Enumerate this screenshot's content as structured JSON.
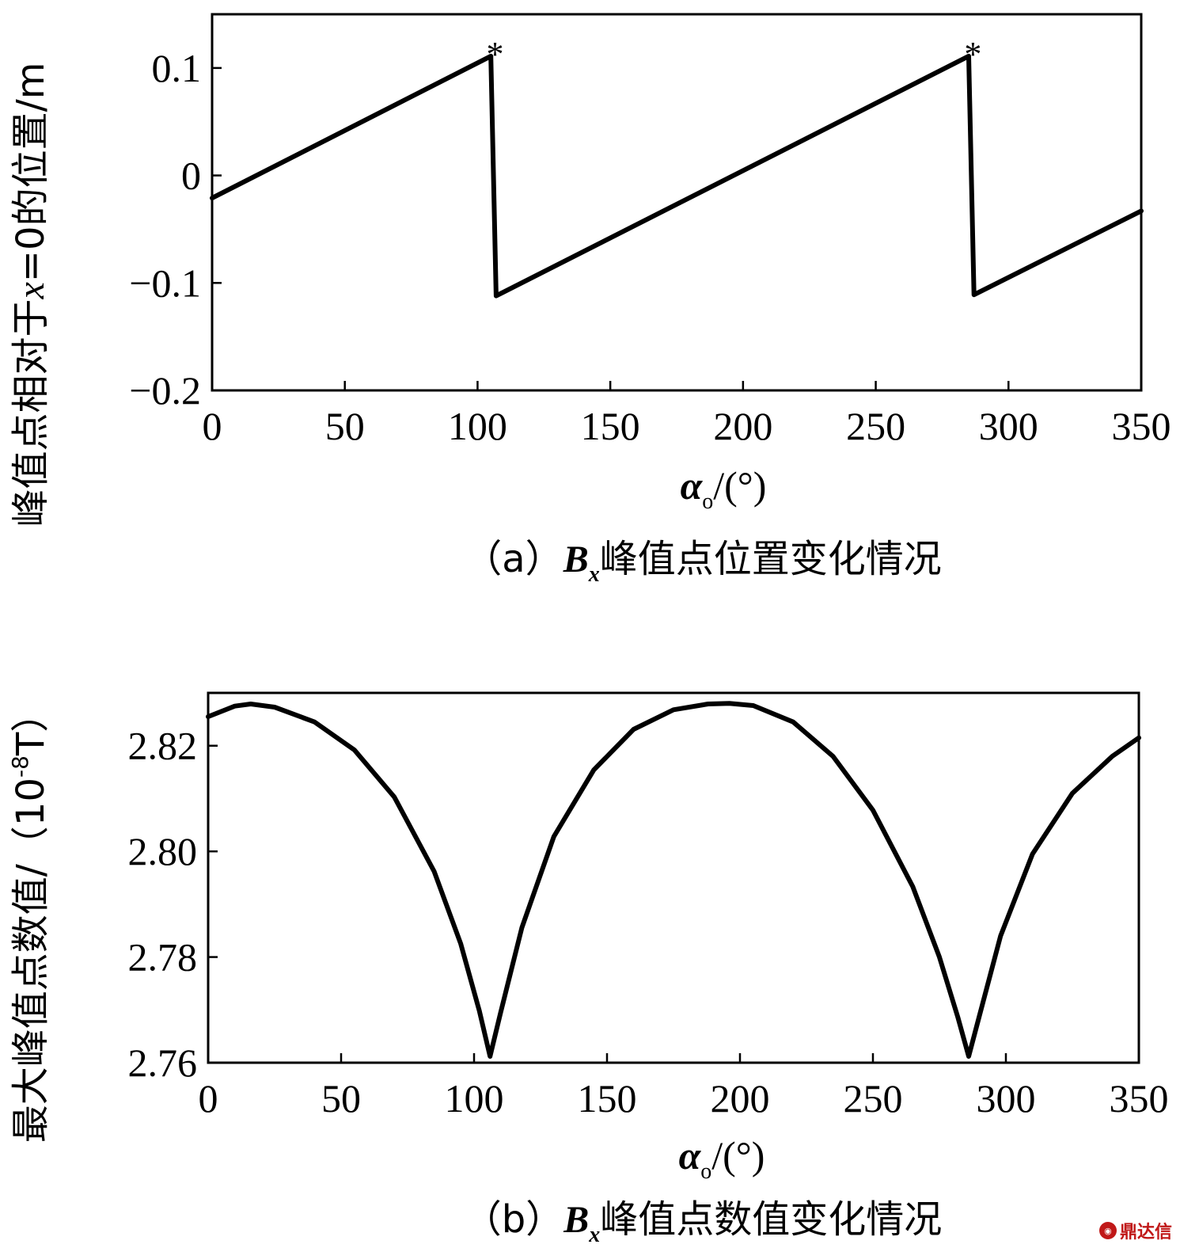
{
  "chart_data": [
    {
      "type": "line",
      "panel": "a",
      "ylabel": "峰值点相对于x=0的位置/m",
      "ylabel_italic_char": "x",
      "xlabel": {
        "symbol": "α",
        "subscript": "o",
        "unit": "/(°)"
      },
      "caption": {
        "prefix": "（a）",
        "var": "B",
        "var_sub": "x",
        "suffix": "峰值点位置变化情况"
      },
      "xlim": [
        0,
        350
      ],
      "ylim": [
        -0.2,
        0.15
      ],
      "xticks": [
        0,
        50,
        100,
        150,
        200,
        250,
        300,
        350
      ],
      "xtick_labels": [
        "0",
        "50",
        "100",
        "150",
        "200",
        "250",
        "300",
        "350"
      ],
      "yticks": [
        -0.2,
        -0.1,
        0,
        0.1
      ],
      "ytick_labels": [
        "−0.2",
        "−0.1",
        "0",
        "0.1"
      ],
      "annotations": [
        {
          "text": "*",
          "x": 106,
          "y": 0.111
        },
        {
          "text": "*",
          "x": 286,
          "y": 0.111
        }
      ],
      "series": [
        {
          "x": [
            0,
            105,
            107,
            285,
            287,
            350
          ],
          "y": [
            -0.021,
            0.111,
            -0.112,
            0.111,
            -0.111,
            -0.033
          ]
        }
      ]
    },
    {
      "type": "line",
      "panel": "b",
      "ylabel": "最大峰值点数值/（10",
      "ylabel_exp": "-8",
      "ylabel_unit": "T）",
      "xlabel": {
        "symbol": "α",
        "subscript": "o",
        "unit": "/(°)"
      },
      "caption": {
        "prefix": "（b）",
        "var": "B",
        "var_sub": "x",
        "suffix": "峰值点数值变化情况"
      },
      "xlim": [
        0,
        350
      ],
      "ylim": [
        2.76,
        2.83
      ],
      "xticks": [
        0,
        50,
        100,
        150,
        200,
        250,
        300,
        350
      ],
      "xtick_labels": [
        "0",
        "50",
        "100",
        "150",
        "200",
        "250",
        "300",
        "350"
      ],
      "yticks": [
        2.76,
        2.78,
        2.8,
        2.82
      ],
      "ytick_labels": [
        "2.76",
        "2.78",
        "2.80",
        "2.82"
      ],
      "series": [
        {
          "x": [
            0,
            10,
            16,
            25,
            40,
            55,
            70,
            85,
            95,
            102,
            106,
            110,
            118,
            130,
            145,
            160,
            175,
            188,
            196,
            205,
            220,
            235,
            250,
            265,
            275,
            282,
            286,
            290,
            298,
            310,
            325,
            340,
            350
          ],
          "y": [
            2.8255,
            2.8275,
            2.8279,
            2.8273,
            2.8245,
            2.8192,
            2.8103,
            2.7962,
            2.7825,
            2.7698,
            2.7612,
            2.7695,
            2.7856,
            2.8028,
            2.8154,
            2.8231,
            2.8268,
            2.8279,
            2.828,
            2.8276,
            2.8245,
            2.818,
            2.8078,
            2.7933,
            2.78,
            2.7685,
            2.7612,
            2.7688,
            2.784,
            2.7995,
            2.811,
            2.818,
            2.8215
          ]
        }
      ]
    }
  ],
  "watermark": {
    "icon": "ding-logo-icon",
    "text": "鼎达信",
    "color": "#c01818"
  }
}
